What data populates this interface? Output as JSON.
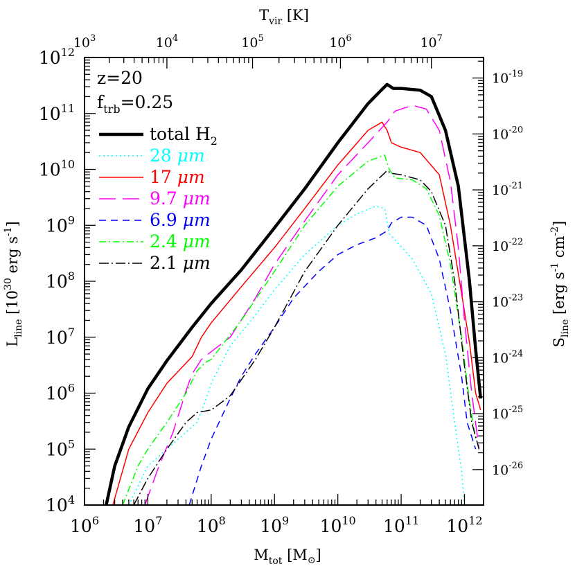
{
  "chart_data": {
    "type": "line",
    "xscale": "log",
    "yscale": "log",
    "xlim": [
      1000000,
      2000000000000
    ],
    "ylim": [
      10000,
      1000000000000
    ],
    "xlabel": {
      "main": "M",
      "sub": "tot",
      "post": " [M",
      "sym": "⊙",
      "close": "]"
    },
    "ylabel": {
      "main": "L",
      "sub": "line",
      "mid": " [10",
      "exp": "30",
      "post": " erg s",
      "exp2": "-1",
      "close": "]"
    },
    "top_axis_label": {
      "main": "T",
      "sub": "vir",
      "post": " [K]"
    },
    "right_axis_label": {
      "main": "S",
      "sub": "line",
      "post": " [erg s",
      "exp1": "-1",
      "mid": " cm",
      "exp2": "-2",
      "close": "]"
    },
    "x_tick_labels": [
      {
        "value": 1000000,
        "base": "10",
        "exp": "6"
      },
      {
        "value": 10000000,
        "base": "10",
        "exp": "7"
      },
      {
        "value": 100000000,
        "base": "10",
        "exp": "8"
      },
      {
        "value": 1000000000,
        "base": "10",
        "exp": "9"
      },
      {
        "value": 10000000000,
        "base": "10",
        "exp": "10"
      },
      {
        "value": 100000000000,
        "base": "10",
        "exp": "11"
      },
      {
        "value": 1000000000000,
        "base": "10",
        "exp": "12"
      }
    ],
    "y_tick_labels": [
      {
        "value": 10000,
        "base": "10",
        "exp": "4"
      },
      {
        "value": 100000,
        "base": "10",
        "exp": "5"
      },
      {
        "value": 1000000,
        "base": "10",
        "exp": "6"
      },
      {
        "value": 10000000,
        "base": "10",
        "exp": "7"
      },
      {
        "value": 100000000,
        "base": "10",
        "exp": "8"
      },
      {
        "value": 1000000000,
        "base": "10",
        "exp": "9"
      },
      {
        "value": 10000000000,
        "base": "10",
        "exp": "10"
      },
      {
        "value": 100000000000,
        "base": "10",
        "exp": "11"
      },
      {
        "value": 1000000000000,
        "base": "10",
        "exp": "12"
      }
    ],
    "top_tick_labels": [
      {
        "m_tot": 1000000,
        "base": "10",
        "exp": "3"
      },
      {
        "m_tot": 20000000,
        "base": "10",
        "exp": "4"
      },
      {
        "m_tot": 450000000,
        "base": "10",
        "exp": "5"
      },
      {
        "m_tot": 11000000000,
        "base": "10",
        "exp": "6"
      },
      {
        "m_tot": 300000000000,
        "base": "10",
        "exp": "7"
      }
    ],
    "right_tick_labels": [
      {
        "l_line": 430000000000,
        "base": "10",
        "exp": "-19"
      },
      {
        "l_line": 43000000000,
        "base": "10",
        "exp": "-20"
      },
      {
        "l_line": 4300000000,
        "base": "10",
        "exp": "-21"
      },
      {
        "l_line": 430000000,
        "base": "10",
        "exp": "-22"
      },
      {
        "l_line": 43000000,
        "base": "10",
        "exp": "-23"
      },
      {
        "l_line": 4300000,
        "base": "10",
        "exp": "-24"
      },
      {
        "l_line": 430000,
        "base": "10",
        "exp": "-25"
      },
      {
        "l_line": 43000,
        "base": "10",
        "exp": "-26"
      }
    ],
    "annotations": [
      {
        "main": "z=20"
      },
      {
        "main": "f",
        "sub": "trb",
        "post": "=0.25"
      }
    ],
    "legend_position": "top-left",
    "series": [
      {
        "name": "total H",
        "name_sub": "2",
        "color": "#000000",
        "dash": "",
        "width": 4.5,
        "points": [
          [
            2200000,
            10000
          ],
          [
            3000000,
            50000
          ],
          [
            5000000,
            250000
          ],
          [
            10000000,
            1200000
          ],
          [
            20000000,
            3800000
          ],
          [
            50000000,
            15000000
          ],
          [
            100000000,
            40000000
          ],
          [
            300000000,
            160000000
          ],
          [
            1000000000,
            900000000
          ],
          [
            3000000000,
            4500000000
          ],
          [
            10000000000,
            30000000000
          ],
          [
            30000000000,
            150000000000
          ],
          [
            50000000000,
            270000000000
          ],
          [
            60000000000,
            330000000000
          ],
          [
            75000000000,
            280000000000
          ],
          [
            100000000000,
            280000000000
          ],
          [
            200000000000,
            260000000000
          ],
          [
            300000000000,
            200000000000
          ],
          [
            500000000000,
            50000000000
          ],
          [
            800000000000,
            5000000000
          ],
          [
            1200000000000,
            100000000
          ],
          [
            1500000000000,
            6000000
          ],
          [
            1800000000000,
            800000
          ]
        ]
      },
      {
        "name": "28 ",
        "name_unit": "μm",
        "color": "#00ffff",
        "dash": "2,4",
        "width": 1.5,
        "points": [
          [
            5000000,
            10000
          ],
          [
            10000000,
            50000
          ],
          [
            20000000,
            100000
          ],
          [
            40000000,
            200000
          ],
          [
            60000000,
            300000
          ],
          [
            80000000,
            700000
          ],
          [
            100000000,
            1500000
          ],
          [
            200000000,
            7000000
          ],
          [
            500000000,
            25000000
          ],
          [
            1000000000,
            70000000
          ],
          [
            3000000000,
            300000000
          ],
          [
            10000000000,
            1000000000
          ],
          [
            20000000000,
            1600000000
          ],
          [
            40000000000,
            2200000000
          ],
          [
            55000000000,
            2000000000
          ],
          [
            65000000000,
            700000000
          ],
          [
            80000000000,
            550000000
          ],
          [
            150000000000,
            250000000
          ],
          [
            300000000000,
            60000000
          ],
          [
            500000000000,
            5000000
          ],
          [
            700000000000,
            300000
          ],
          [
            900000000000,
            40000
          ],
          [
            1000000000000,
            10000
          ]
        ]
      },
      {
        "name": "17 ",
        "name_unit": "μm",
        "color": "#ff0000",
        "dash": "",
        "width": 1.5,
        "points": [
          [
            2800000,
            10000
          ],
          [
            5000000,
            100000
          ],
          [
            10000000,
            450000
          ],
          [
            20000000,
            1500000
          ],
          [
            50000000,
            4500000
          ],
          [
            70000000,
            10000000
          ],
          [
            100000000,
            18000000
          ],
          [
            300000000,
            80000000
          ],
          [
            1000000000,
            400000000
          ],
          [
            3000000000,
            2000000000
          ],
          [
            10000000000,
            12000000000
          ],
          [
            30000000000,
            50000000000
          ],
          [
            50000000000,
            70000000000
          ],
          [
            60000000000,
            50000000000
          ],
          [
            70000000000,
            30000000000
          ],
          [
            100000000000,
            25000000000
          ],
          [
            200000000000,
            20000000000
          ],
          [
            400000000000,
            8000000000
          ],
          [
            600000000000,
            1000000000
          ],
          [
            900000000000,
            60000000
          ],
          [
            1200000000000,
            8000000
          ],
          [
            1500000000000,
            1000000
          ],
          [
            1800000000000,
            500000
          ]
        ]
      },
      {
        "name": "9.7 ",
        "name_unit": "μm",
        "color": "#ff00ff",
        "dash": "24,10",
        "width": 1.5,
        "points": [
          [
            9000000,
            10000
          ],
          [
            15000000,
            50000
          ],
          [
            25000000,
            200000
          ],
          [
            40000000,
            1100000
          ],
          [
            50000000,
            2200000
          ],
          [
            70000000,
            4000000
          ],
          [
            100000000,
            5500000
          ],
          [
            200000000,
            10000000
          ],
          [
            500000000,
            50000000
          ],
          [
            1000000000,
            200000000
          ],
          [
            3000000000,
            1200000000
          ],
          [
            10000000000,
            8000000000
          ],
          [
            30000000000,
            30000000000
          ],
          [
            60000000000,
            70000000000
          ],
          [
            80000000000,
            110000000000
          ],
          [
            150000000000,
            140000000000
          ],
          [
            250000000000,
            120000000000
          ],
          [
            400000000000,
            50000000000
          ],
          [
            600000000000,
            6000000000
          ],
          [
            800000000000,
            400000000
          ],
          [
            1000000000000,
            20000000
          ],
          [
            1300000000000,
            1000000
          ],
          [
            1700000000000,
            100000
          ]
        ]
      },
      {
        "name": "6.9 ",
        "name_unit": "μm",
        "color": "#0000ff",
        "dash": "10,7",
        "width": 1.5,
        "points": [
          [
            45000000,
            10000
          ],
          [
            70000000,
            50000
          ],
          [
            100000000,
            150000
          ],
          [
            150000000,
            400000
          ],
          [
            200000000,
            800000
          ],
          [
            300000000,
            2000000
          ],
          [
            500000000,
            5000000
          ],
          [
            1000000000,
            15000000
          ],
          [
            2000000000,
            50000000
          ],
          [
            5000000000,
            150000000
          ],
          [
            10000000000,
            300000000
          ],
          [
            20000000000,
            450000000
          ],
          [
            40000000000,
            600000000
          ],
          [
            60000000000,
            800000000
          ],
          [
            70000000000,
            1100000000
          ],
          [
            100000000000,
            1400000000
          ],
          [
            150000000000,
            1400000000
          ],
          [
            250000000000,
            1000000000
          ],
          [
            400000000000,
            250000000
          ],
          [
            600000000000,
            30000000
          ],
          [
            900000000000,
            2000000
          ],
          [
            1100000000000,
            300000
          ],
          [
            1500000000000,
            100000
          ]
        ]
      },
      {
        "name": "2.4 ",
        "name_unit": "μm",
        "color": "#00ff00",
        "dash": "10,4,2,4",
        "width": 1.5,
        "points": [
          [
            4000000,
            10000
          ],
          [
            7000000,
            50000
          ],
          [
            10000000,
            100000
          ],
          [
            20000000,
            300000
          ],
          [
            40000000,
            1000000
          ],
          [
            60000000,
            2500000
          ],
          [
            80000000,
            3500000
          ],
          [
            100000000,
            4000000
          ],
          [
            300000000,
            20000000
          ],
          [
            1000000000,
            150000000
          ],
          [
            3000000000,
            1000000000
          ],
          [
            10000000000,
            5000000000
          ],
          [
            30000000000,
            14000000000
          ],
          [
            55000000000,
            18000000000
          ],
          [
            65000000000,
            10000000000
          ],
          [
            80000000000,
            7000000000
          ],
          [
            150000000000,
            6500000000
          ],
          [
            250000000000,
            4500000000
          ],
          [
            400000000000,
            1500000000
          ],
          [
            600000000000,
            200000000
          ],
          [
            900000000000,
            10000000
          ],
          [
            1200000000000,
            700000
          ],
          [
            1500000000000,
            150000
          ]
        ]
      },
      {
        "name": "2.1 ",
        "name_unit": "μm",
        "color": "#000000",
        "dash": "14,4,2,4",
        "width": 1.5,
        "points": [
          [
            6000000,
            10000
          ],
          [
            10000000,
            30000
          ],
          [
            20000000,
            100000
          ],
          [
            40000000,
            300000
          ],
          [
            60000000,
            450000
          ],
          [
            100000000,
            500000
          ],
          [
            150000000,
            700000
          ],
          [
            200000000,
            900000
          ],
          [
            500000000,
            4000000
          ],
          [
            1000000000,
            15000000
          ],
          [
            3000000000,
            150000000
          ],
          [
            10000000000,
            1000000000
          ],
          [
            30000000000,
            4500000000
          ],
          [
            60000000000,
            9500000000
          ],
          [
            70000000000,
            8500000000
          ],
          [
            100000000000,
            8000000000
          ],
          [
            200000000000,
            6500000000
          ],
          [
            300000000000,
            4000000000
          ],
          [
            500000000000,
            1000000000
          ],
          [
            700000000000,
            100000000
          ],
          [
            1000000000000,
            3000000
          ],
          [
            1300000000000,
            300000
          ],
          [
            1700000000000,
            100000
          ]
        ]
      }
    ]
  }
}
